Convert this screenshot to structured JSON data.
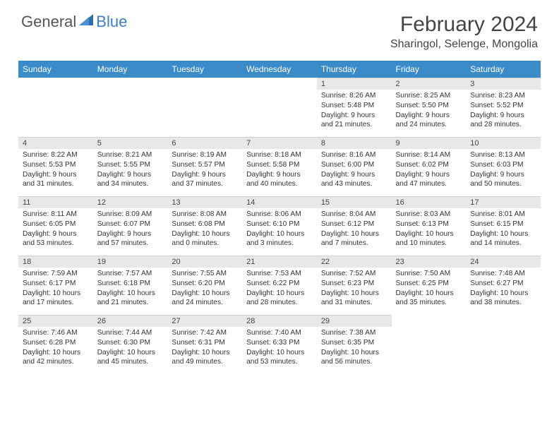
{
  "logo": {
    "text1": "General",
    "text2": "Blue"
  },
  "title": "February 2024",
  "location": "Sharingol, Selenge, Mongolia",
  "header_bg": "#3b8bc9",
  "daynum_bg": "#e8e8e8",
  "weekdays": [
    "Sunday",
    "Monday",
    "Tuesday",
    "Wednesday",
    "Thursday",
    "Friday",
    "Saturday"
  ],
  "weeks": [
    [
      null,
      null,
      null,
      null,
      {
        "n": "1",
        "sr": "8:26 AM",
        "ss": "5:48 PM",
        "dl": "9 hours and 21 minutes."
      },
      {
        "n": "2",
        "sr": "8:25 AM",
        "ss": "5:50 PM",
        "dl": "9 hours and 24 minutes."
      },
      {
        "n": "3",
        "sr": "8:23 AM",
        "ss": "5:52 PM",
        "dl": "9 hours and 28 minutes."
      }
    ],
    [
      {
        "n": "4",
        "sr": "8:22 AM",
        "ss": "5:53 PM",
        "dl": "9 hours and 31 minutes."
      },
      {
        "n": "5",
        "sr": "8:21 AM",
        "ss": "5:55 PM",
        "dl": "9 hours and 34 minutes."
      },
      {
        "n": "6",
        "sr": "8:19 AM",
        "ss": "5:57 PM",
        "dl": "9 hours and 37 minutes."
      },
      {
        "n": "7",
        "sr": "8:18 AM",
        "ss": "5:58 PM",
        "dl": "9 hours and 40 minutes."
      },
      {
        "n": "8",
        "sr": "8:16 AM",
        "ss": "6:00 PM",
        "dl": "9 hours and 43 minutes."
      },
      {
        "n": "9",
        "sr": "8:14 AM",
        "ss": "6:02 PM",
        "dl": "9 hours and 47 minutes."
      },
      {
        "n": "10",
        "sr": "8:13 AM",
        "ss": "6:03 PM",
        "dl": "9 hours and 50 minutes."
      }
    ],
    [
      {
        "n": "11",
        "sr": "8:11 AM",
        "ss": "6:05 PM",
        "dl": "9 hours and 53 minutes."
      },
      {
        "n": "12",
        "sr": "8:09 AM",
        "ss": "6:07 PM",
        "dl": "9 hours and 57 minutes."
      },
      {
        "n": "13",
        "sr": "8:08 AM",
        "ss": "6:08 PM",
        "dl": "10 hours and 0 minutes."
      },
      {
        "n": "14",
        "sr": "8:06 AM",
        "ss": "6:10 PM",
        "dl": "10 hours and 3 minutes."
      },
      {
        "n": "15",
        "sr": "8:04 AM",
        "ss": "6:12 PM",
        "dl": "10 hours and 7 minutes."
      },
      {
        "n": "16",
        "sr": "8:03 AM",
        "ss": "6:13 PM",
        "dl": "10 hours and 10 minutes."
      },
      {
        "n": "17",
        "sr": "8:01 AM",
        "ss": "6:15 PM",
        "dl": "10 hours and 14 minutes."
      }
    ],
    [
      {
        "n": "18",
        "sr": "7:59 AM",
        "ss": "6:17 PM",
        "dl": "10 hours and 17 minutes."
      },
      {
        "n": "19",
        "sr": "7:57 AM",
        "ss": "6:18 PM",
        "dl": "10 hours and 21 minutes."
      },
      {
        "n": "20",
        "sr": "7:55 AM",
        "ss": "6:20 PM",
        "dl": "10 hours and 24 minutes."
      },
      {
        "n": "21",
        "sr": "7:53 AM",
        "ss": "6:22 PM",
        "dl": "10 hours and 28 minutes."
      },
      {
        "n": "22",
        "sr": "7:52 AM",
        "ss": "6:23 PM",
        "dl": "10 hours and 31 minutes."
      },
      {
        "n": "23",
        "sr": "7:50 AM",
        "ss": "6:25 PM",
        "dl": "10 hours and 35 minutes."
      },
      {
        "n": "24",
        "sr": "7:48 AM",
        "ss": "6:27 PM",
        "dl": "10 hours and 38 minutes."
      }
    ],
    [
      {
        "n": "25",
        "sr": "7:46 AM",
        "ss": "6:28 PM",
        "dl": "10 hours and 42 minutes."
      },
      {
        "n": "26",
        "sr": "7:44 AM",
        "ss": "6:30 PM",
        "dl": "10 hours and 45 minutes."
      },
      {
        "n": "27",
        "sr": "7:42 AM",
        "ss": "6:31 PM",
        "dl": "10 hours and 49 minutes."
      },
      {
        "n": "28",
        "sr": "7:40 AM",
        "ss": "6:33 PM",
        "dl": "10 hours and 53 minutes."
      },
      {
        "n": "29",
        "sr": "7:38 AM",
        "ss": "6:35 PM",
        "dl": "10 hours and 56 minutes."
      },
      null,
      null
    ]
  ],
  "labels": {
    "sunrise": "Sunrise:",
    "sunset": "Sunset:",
    "daylight": "Daylight:"
  }
}
